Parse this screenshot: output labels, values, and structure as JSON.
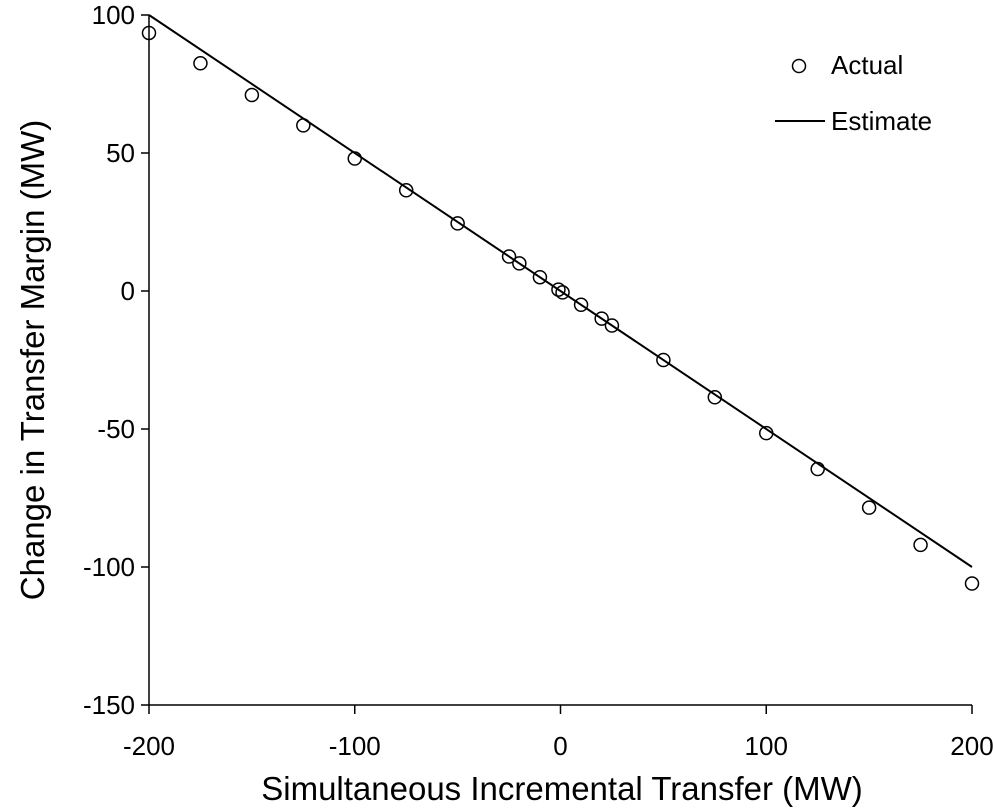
{
  "chart_data": {
    "type": "scatter",
    "title": "",
    "xlabel": "Simultaneous Incremental Transfer (MW)",
    "ylabel": "Change in Transfer Margin (MW)",
    "xlim": [
      -200,
      200
    ],
    "ylim": [
      -150,
      100
    ],
    "xticks": [
      "-200",
      "-100",
      "0",
      "100",
      "200"
    ],
    "yticks": [
      "100",
      "50",
      "0",
      "-50",
      "-100",
      "-150"
    ],
    "grid": false,
    "legend_position": "upper right",
    "legend": [
      "Actual",
      "Estimate"
    ],
    "series": [
      {
        "name": "Actual",
        "type": "scatter",
        "marker": "open-circle",
        "x": [
          -200,
          -175,
          -150,
          -125,
          -100,
          -75,
          -50,
          -25,
          -20,
          -10,
          -1,
          1,
          10,
          20,
          25,
          50,
          75,
          100,
          125,
          150,
          175,
          200
        ],
        "y": [
          93.5,
          82.5,
          71,
          60,
          48,
          36.5,
          24.5,
          12.5,
          10,
          5,
          0.5,
          -0.5,
          -5,
          -10,
          -12.5,
          -25,
          -38.5,
          -51.5,
          -64.5,
          -78.5,
          -92,
          -106
        ]
      },
      {
        "name": "Estimate",
        "type": "line",
        "x": [
          -200,
          200
        ],
        "y": [
          100,
          -100
        ]
      }
    ]
  },
  "legend": {
    "actual_label": "Actual",
    "estimate_label": "Estimate"
  },
  "axes": {
    "x_title": "Simultaneous Incremental Transfer (MW)",
    "y_title": "Change in Transfer Margin (MW)",
    "x_tick_labels": [
      "-200",
      "-100",
      "0",
      "100",
      "200"
    ],
    "y_tick_labels": [
      "100",
      "50",
      "0",
      "-50",
      "-100",
      "-150"
    ]
  }
}
